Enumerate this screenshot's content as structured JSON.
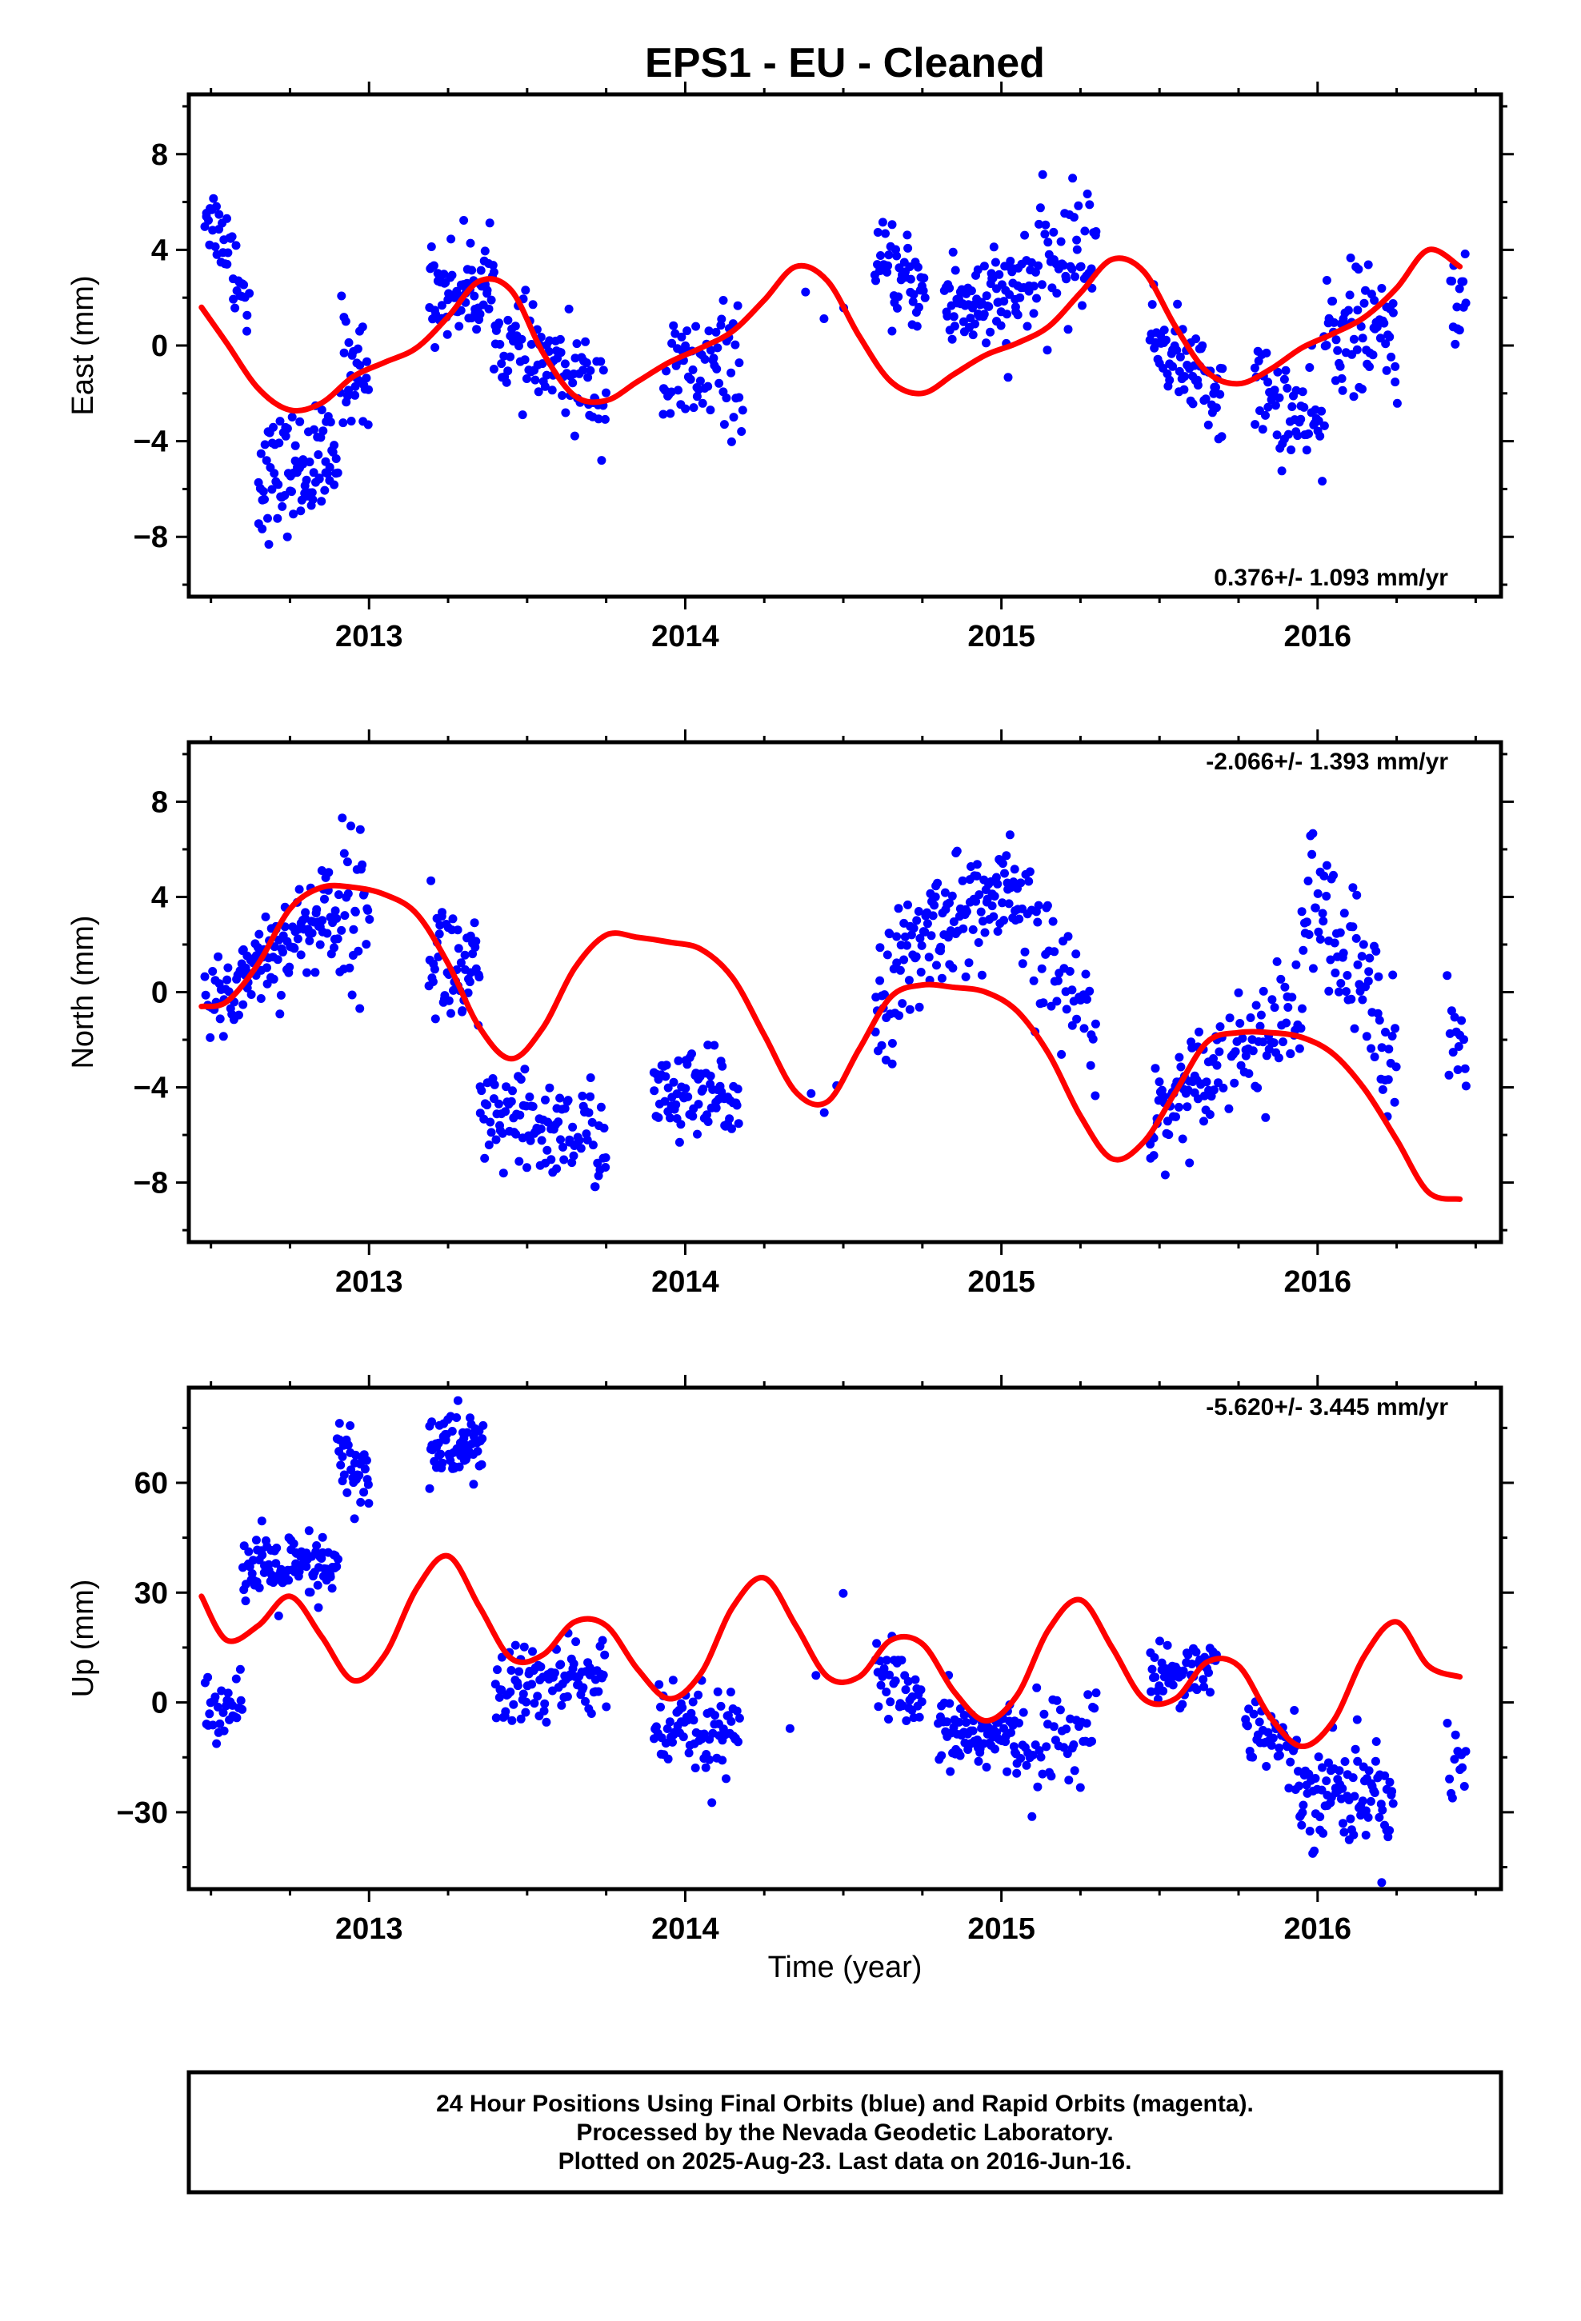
{
  "title": "EPS1  - EU - Cleaned",
  "xlabel": "Time (year)",
  "colors": {
    "final_orbits": "#0000ff",
    "model": "#ff0000",
    "frame": "#000000"
  },
  "footer": {
    "line1": "24 Hour Positions Using Final Orbits (blue) and Rapid Orbits (magenta).",
    "line2": "Processed by the Nevada Geodetic Laboratory.",
    "line3": "Plotted on 2025-Aug-23. Last data on 2016-Jun-16."
  },
  "chart_data": [
    {
      "type": "scatter",
      "component": "east",
      "ylabel": "East (mm)",
      "rate_label": "0.376+/- 1.093 mm/yr",
      "rate_position": "bottom-right",
      "xlim": [
        2012.43,
        2016.58
      ],
      "ylim": [
        -10.5,
        10.5
      ],
      "x_ticks": [
        2013,
        2014,
        2015,
        2016
      ],
      "x_tick_labels": [
        "2013",
        "2014",
        "2015",
        "2016"
      ],
      "y_ticks": [
        -8,
        -4,
        0,
        4,
        8
      ],
      "y_tick_labels": [
        "−8",
        "−4",
        "0",
        "4",
        "8"
      ],
      "grid": false,
      "clusters": [
        {
          "x0": 2012.48,
          "x1": 2012.57,
          "n": 26,
          "y0": 5.8,
          "y1": 3.8,
          "sd": 0.8
        },
        {
          "x0": 2012.57,
          "x1": 2012.62,
          "n": 14,
          "y0": 3.5,
          "y1": 1.5,
          "sd": 1.0
        },
        {
          "x0": 2012.65,
          "x1": 2012.9,
          "n": 90,
          "y0": -5.5,
          "y1": -4.9,
          "sd": 1.2
        },
        {
          "x0": 2012.91,
          "x1": 2013.0,
          "n": 30,
          "y0": -0.5,
          "y1": -1.5,
          "sd": 1.2
        },
        {
          "x0": 2013.19,
          "x1": 2013.4,
          "n": 75,
          "y0": 2.2,
          "y1": 2.5,
          "sd": 1.0
        },
        {
          "x0": 2013.4,
          "x1": 2013.75,
          "n": 95,
          "y0": 0.2,
          "y1": -2.0,
          "sd": 1.0
        },
        {
          "x0": 2013.93,
          "x1": 2014.18,
          "n": 70,
          "y0": -1.5,
          "y1": -0.8,
          "sd": 1.3
        },
        {
          "x0": 2014.38,
          "x1": 2014.5,
          "n": 3,
          "y0": 1.2,
          "y1": 1.5,
          "sd": 0.5
        },
        {
          "x0": 2014.6,
          "x1": 2014.76,
          "n": 50,
          "y0": 3.2,
          "y1": 2.3,
          "sd": 0.9
        },
        {
          "x0": 2014.82,
          "x1": 2015.05,
          "n": 80,
          "y0": 1.8,
          "y1": 1.8,
          "sd": 1.1
        },
        {
          "x0": 2015.05,
          "x1": 2015.3,
          "n": 65,
          "y0": 2.5,
          "y1": 4.5,
          "sd": 1.3
        },
        {
          "x0": 2015.47,
          "x1": 2015.7,
          "n": 70,
          "y0": 0.5,
          "y1": -2.2,
          "sd": 0.9
        },
        {
          "x0": 2015.8,
          "x1": 2016.02,
          "n": 60,
          "y0": -1.8,
          "y1": -3.8,
          "sd": 1.1
        },
        {
          "x0": 2016.02,
          "x1": 2016.25,
          "n": 70,
          "y0": 0.8,
          "y1": 0.3,
          "sd": 1.3
        },
        {
          "x0": 2016.42,
          "x1": 2016.47,
          "n": 14,
          "y0": 2.0,
          "y1": 1.5,
          "sd": 0.9
        }
      ],
      "model_curve": {
        "x": [
          2012.47,
          2012.55,
          2012.65,
          2012.75,
          2012.85,
          2012.95,
          2013.05,
          2013.15,
          2013.25,
          2013.35,
          2013.45,
          2013.55,
          2013.65,
          2013.75,
          2013.85,
          2013.95,
          2014.05,
          2014.15,
          2014.25,
          2014.35,
          2014.45,
          2014.55,
          2014.65,
          2014.75,
          2014.85,
          2014.95,
          2015.05,
          2015.15,
          2015.25,
          2015.35,
          2015.45,
          2015.55,
          2015.65,
          2015.75,
          2015.85,
          2015.95,
          2016.05,
          2016.15,
          2016.25,
          2016.35,
          2016.45
        ],
        "y": [
          1.6,
          0.1,
          -1.8,
          -2.7,
          -2.4,
          -1.3,
          -0.7,
          -0.1,
          1.2,
          2.7,
          2.3,
          -0.3,
          -2.1,
          -2.3,
          -1.5,
          -0.7,
          -0.1,
          0.6,
          1.9,
          3.3,
          2.7,
          0.4,
          -1.5,
          -2.0,
          -1.2,
          -0.4,
          0.1,
          0.8,
          2.2,
          3.6,
          3.1,
          0.8,
          -1.1,
          -1.6,
          -1.0,
          -0.1,
          0.5,
          1.2,
          2.4,
          4.0,
          3.3
        ]
      }
    },
    {
      "type": "scatter",
      "component": "north",
      "ylabel": "North (mm)",
      "rate_label": "-2.066+/- 1.393 mm/yr",
      "rate_position": "top-right",
      "xlim": [
        2012.43,
        2016.58
      ],
      "ylim": [
        -10.5,
        10.5
      ],
      "x_ticks": [
        2013,
        2014,
        2015,
        2016
      ],
      "x_tick_labels": [
        "2013",
        "2014",
        "2015",
        "2016"
      ],
      "y_ticks": [
        -8,
        -4,
        0,
        4,
        8
      ],
      "y_tick_labels": [
        "−8",
        "−4",
        "0",
        "4",
        "8"
      ],
      "grid": false,
      "clusters": [
        {
          "x0": 2012.48,
          "x1": 2012.6,
          "n": 30,
          "y0": -0.5,
          "y1": 0.3,
          "sd": 1.0
        },
        {
          "x0": 2012.6,
          "x1": 2012.85,
          "n": 80,
          "y0": 1.0,
          "y1": 3.0,
          "sd": 1.0
        },
        {
          "x0": 2012.85,
          "x1": 2013.0,
          "n": 45,
          "y0": 3.5,
          "y1": 3.5,
          "sd": 1.6
        },
        {
          "x0": 2013.19,
          "x1": 2013.35,
          "n": 55,
          "y0": 2.0,
          "y1": 0.0,
          "sd": 1.5
        },
        {
          "x0": 2013.35,
          "x1": 2013.75,
          "n": 110,
          "y0": -5.5,
          "y1": -6.0,
          "sd": 1.1
        },
        {
          "x0": 2013.9,
          "x1": 2014.17,
          "n": 80,
          "y0": -4.5,
          "y1": -4.5,
          "sd": 1.0
        },
        {
          "x0": 2014.4,
          "x1": 2014.48,
          "n": 3,
          "y0": -2.5,
          "y1": -4.5,
          "sd": 1.5
        },
        {
          "x0": 2014.6,
          "x1": 2014.78,
          "n": 55,
          "y0": -0.5,
          "y1": 2.5,
          "sd": 1.3
        },
        {
          "x0": 2014.78,
          "x1": 2015.05,
          "n": 85,
          "y0": 3.0,
          "y1": 4.0,
          "sd": 1.2
        },
        {
          "x0": 2015.05,
          "x1": 2015.3,
          "n": 55,
          "y0": 3.0,
          "y1": -1.5,
          "sd": 1.4
        },
        {
          "x0": 2015.47,
          "x1": 2015.7,
          "n": 70,
          "y0": -5.5,
          "y1": -2.5,
          "sd": 1.0
        },
        {
          "x0": 2015.72,
          "x1": 2015.95,
          "n": 55,
          "y0": -2.5,
          "y1": -1.0,
          "sd": 1.2
        },
        {
          "x0": 2015.95,
          "x1": 2016.25,
          "n": 80,
          "y0": 4.0,
          "y1": -2.0,
          "sd": 1.8
        },
        {
          "x0": 2016.41,
          "x1": 2016.47,
          "n": 14,
          "y0": -0.5,
          "y1": -3.0,
          "sd": 1.2
        }
      ],
      "model_curve": {
        "x": [
          2012.47,
          2012.55,
          2012.65,
          2012.75,
          2012.85,
          2012.95,
          2013.05,
          2013.15,
          2013.25,
          2013.35,
          2013.45,
          2013.55,
          2013.65,
          2013.75,
          2013.85,
          2013.95,
          2014.05,
          2014.15,
          2014.25,
          2014.35,
          2014.45,
          2014.55,
          2014.65,
          2014.75,
          2014.85,
          2014.95,
          2015.05,
          2015.15,
          2015.25,
          2015.35,
          2015.45,
          2015.55,
          2015.65,
          2015.75,
          2015.85,
          2015.95,
          2016.05,
          2016.15,
          2016.25,
          2016.35,
          2016.45
        ],
        "y": [
          -0.6,
          -0.4,
          1.2,
          3.5,
          4.4,
          4.4,
          4.1,
          3.3,
          1.2,
          -1.5,
          -2.8,
          -1.5,
          1.0,
          2.4,
          2.3,
          2.1,
          1.8,
          0.6,
          -1.8,
          -4.2,
          -4.6,
          -2.4,
          -0.2,
          0.3,
          0.2,
          0.0,
          -0.8,
          -2.6,
          -5.2,
          -7.0,
          -6.3,
          -4.2,
          -2.1,
          -1.7,
          -1.7,
          -1.9,
          -2.6,
          -4.1,
          -6.2,
          -8.4,
          -8.7
        ]
      }
    },
    {
      "type": "scatter",
      "component": "up",
      "ylabel": "Up (mm)",
      "rate_label": "-5.620+/- 3.445 mm/yr",
      "rate_position": "top-right",
      "xlabel": "Time (year)",
      "xlim": [
        2012.43,
        2016.58
      ],
      "ylim": [
        -51,
        86
      ],
      "x_ticks": [
        2013,
        2014,
        2015,
        2016
      ],
      "x_tick_labels": [
        "2013",
        "2014",
        "2015",
        "2016"
      ],
      "y_ticks": [
        -30,
        0,
        30,
        60
      ],
      "y_tick_labels": [
        "−30",
        "0",
        "30",
        "60"
      ],
      "grid": false,
      "clusters": [
        {
          "x0": 2012.48,
          "x1": 2012.6,
          "n": 30,
          "y0": -4.0,
          "y1": 3.0,
          "sd": 4.0
        },
        {
          "x0": 2012.6,
          "x1": 2012.9,
          "n": 100,
          "y0": 36.0,
          "y1": 36.0,
          "sd": 5.0
        },
        {
          "x0": 2012.9,
          "x1": 2013.0,
          "n": 35,
          "y0": 68.0,
          "y1": 60.0,
          "sd": 5.5
        },
        {
          "x0": 2013.19,
          "x1": 2013.36,
          "n": 70,
          "y0": 70.0,
          "y1": 70.0,
          "sd": 5.0
        },
        {
          "x0": 2013.4,
          "x1": 2013.75,
          "n": 100,
          "y0": 3.0,
          "y1": 8.0,
          "sd": 6.0
        },
        {
          "x0": 2013.9,
          "x1": 2014.17,
          "n": 80,
          "y0": -8.0,
          "y1": -10.0,
          "sd": 6.0
        },
        {
          "x0": 2014.33,
          "x1": 2014.5,
          "n": 3,
          "y0": -8.0,
          "y1": 28.0,
          "sd": 5.0
        },
        {
          "x0": 2014.6,
          "x1": 2014.75,
          "n": 40,
          "y0": 10.0,
          "y1": -4.0,
          "sd": 5.0
        },
        {
          "x0": 2014.8,
          "x1": 2015.05,
          "n": 85,
          "y0": -8.0,
          "y1": -10.0,
          "sd": 5.0
        },
        {
          "x0": 2015.05,
          "x1": 2015.3,
          "n": 50,
          "y0": -12.0,
          "y1": -8.0,
          "sd": 6.0
        },
        {
          "x0": 2015.47,
          "x1": 2015.68,
          "n": 60,
          "y0": 8.0,
          "y1": 10.0,
          "sd": 4.0
        },
        {
          "x0": 2015.77,
          "x1": 2015.93,
          "n": 40,
          "y0": -4.0,
          "y1": -15.0,
          "sd": 5.0
        },
        {
          "x0": 2015.93,
          "x1": 2016.24,
          "n": 95,
          "y0": -22.0,
          "y1": -26.0,
          "sd": 7.0
        },
        {
          "x0": 2016.41,
          "x1": 2016.47,
          "n": 12,
          "y0": -15.0,
          "y1": -15.0,
          "sd": 6.0
        }
      ],
      "model_curve": {
        "x": [
          2012.47,
          2012.55,
          2012.65,
          2012.75,
          2012.85,
          2012.95,
          2013.05,
          2013.15,
          2013.25,
          2013.35,
          2013.45,
          2013.55,
          2013.65,
          2013.75,
          2013.85,
          2013.95,
          2014.05,
          2014.15,
          2014.25,
          2014.35,
          2014.45,
          2014.55,
          2014.65,
          2014.75,
          2014.85,
          2014.95,
          2015.05,
          2015.15,
          2015.25,
          2015.35,
          2015.45,
          2015.55,
          2015.65,
          2015.75,
          2015.85,
          2015.95,
          2016.05,
          2016.15,
          2016.25,
          2016.35,
          2016.45
        ],
        "y": [
          29.0,
          17.0,
          21.0,
          29.0,
          18.0,
          6.0,
          13.0,
          31.0,
          40.0,
          26.0,
          12.0,
          13.0,
          22.0,
          21.0,
          9.0,
          1.0,
          8.0,
          26.0,
          34.0,
          21.0,
          7.0,
          7.0,
          17.0,
          16.0,
          3.0,
          -5.0,
          2.0,
          20.0,
          28.0,
          15.0,
          1.0,
          1.0,
          11.0,
          10.0,
          -4.0,
          -12.0,
          -5.0,
          13.0,
          22.0,
          10.0,
          7.0
        ]
      }
    }
  ]
}
